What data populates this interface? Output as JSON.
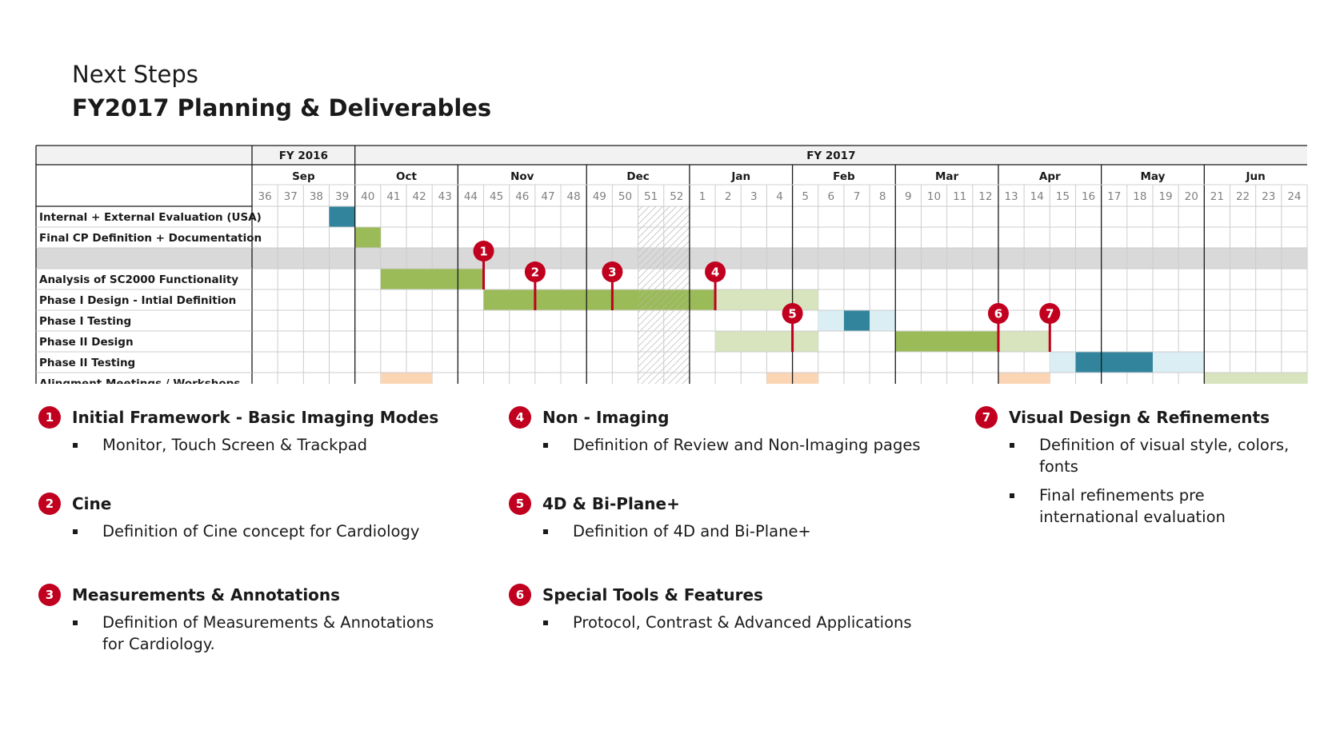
{
  "title": {
    "line1": "Next Steps",
    "line2": "FY2017 Planning & Deliverables"
  },
  "fiscal_years": [
    {
      "label": "FY 2016",
      "weeks": 4
    },
    {
      "label": "FY 2017",
      "weeks": 37
    }
  ],
  "months": [
    {
      "label": "Sep",
      "weeks": 4
    },
    {
      "label": "Oct",
      "weeks": 4
    },
    {
      "label": "Nov",
      "weeks": 5
    },
    {
      "label": "Dec",
      "weeks": 4
    },
    {
      "label": "Jan",
      "weeks": 4
    },
    {
      "label": "Feb",
      "weeks": 4
    },
    {
      "label": "Mar",
      "weeks": 4
    },
    {
      "label": "Apr",
      "weeks": 4
    },
    {
      "label": "May",
      "weeks": 4
    },
    {
      "label": "Jun",
      "weeks": 4
    }
  ],
  "weeks": [
    "36",
    "37",
    "38",
    "39",
    "40",
    "41",
    "42",
    "43",
    "44",
    "45",
    "46",
    "47",
    "48",
    "49",
    "50",
    "51",
    "52",
    "1",
    "2",
    "3",
    "4",
    "5",
    "6",
    "7",
    "8",
    "9",
    "10",
    "11",
    "12",
    "13",
    "14",
    "15",
    "16",
    "17",
    "18",
    "19",
    "20",
    "21",
    "22",
    "23",
    "24"
  ],
  "rows": [
    {
      "label": "Internal + External Evaluation (USA)"
    },
    {
      "label": "Final CP Definition + Documentation"
    },
    {
      "label": ""
    },
    {
      "label": "Analysis of SC2000 Functionality"
    },
    {
      "label": "Phase I Design - Intial Definition"
    },
    {
      "label": "Phase I Testing"
    },
    {
      "label": "Phase II Design"
    },
    {
      "label": "Phase II Testing"
    },
    {
      "label": "Alingment Meetings / Workshops"
    }
  ],
  "colors": {
    "green": "#9bbb59",
    "light_green": "#d7e4bd",
    "teal": "#31849b",
    "light_blue": "#daeef3",
    "peach": "#fcd5b4",
    "separator": "#d9d9d9",
    "marker": "#c0001e",
    "hatch": "#bfbfbf"
  },
  "bars": [
    {
      "row": 0,
      "start_week": 3,
      "span": 1,
      "color": "teal"
    },
    {
      "row": 1,
      "start_week": 4,
      "span": 1,
      "color": "green"
    },
    {
      "row": 3,
      "start_week": 5,
      "span": 4,
      "color": "green"
    },
    {
      "row": 4,
      "start_week": 9,
      "span": 9,
      "color": "green"
    },
    {
      "row": 4,
      "start_week": 18,
      "span": 4,
      "color": "light_green"
    },
    {
      "row": 5,
      "start_week": 22,
      "span": 1,
      "color": "light_blue"
    },
    {
      "row": 5,
      "start_week": 23,
      "span": 1,
      "color": "teal"
    },
    {
      "row": 5,
      "start_week": 24,
      "span": 1,
      "color": "light_blue"
    },
    {
      "row": 6,
      "start_week": 18,
      "span": 4,
      "color": "light_green"
    },
    {
      "row": 6,
      "start_week": 25,
      "span": 4,
      "color": "green"
    },
    {
      "row": 6,
      "start_week": 29,
      "span": 2,
      "color": "light_green"
    },
    {
      "row": 7,
      "start_week": 31,
      "span": 1,
      "color": "light_blue"
    },
    {
      "row": 7,
      "start_week": 32,
      "span": 3,
      "color": "teal"
    },
    {
      "row": 7,
      "start_week": 35,
      "span": 2,
      "color": "light_blue"
    },
    {
      "row": 8,
      "start_week": 5,
      "span": 2,
      "color": "peach"
    },
    {
      "row": 8,
      "start_week": 20,
      "span": 2,
      "color": "peach"
    },
    {
      "row": 8,
      "start_week": 29,
      "span": 2,
      "color": "peach"
    },
    {
      "row": 8,
      "start_week": 37,
      "span": 4,
      "color": "light_green"
    }
  ],
  "holiday": {
    "start_week": 15,
    "span": 2
  },
  "separator_row": 2,
  "milestones": [
    {
      "id": "1",
      "week_boundary": 9,
      "from_row": 2,
      "to_row": 3
    },
    {
      "id": "2",
      "week_boundary": 11,
      "from_row": 3,
      "to_row": 4
    },
    {
      "id": "3",
      "week_boundary": 14,
      "from_row": 3,
      "to_row": 4
    },
    {
      "id": "4",
      "week_boundary": 18,
      "from_row": 3,
      "to_row": 4
    },
    {
      "id": "5",
      "week_boundary": 21,
      "from_row": 5,
      "to_row": 6
    },
    {
      "id": "6",
      "week_boundary": 29,
      "from_row": 5,
      "to_row": 6
    },
    {
      "id": "7",
      "week_boundary": 31,
      "from_row": 5,
      "to_row": 6
    }
  ],
  "legend": [
    {
      "id": "1",
      "title": "Initial Framework - Basic Imaging Modes",
      "items": [
        "Monitor, Touch Screen & Trackpad"
      ]
    },
    {
      "id": "2",
      "title": "Cine",
      "items": [
        "Definition of Cine concept for Cardiology"
      ]
    },
    {
      "id": "3",
      "title": "Measurements & Annotations",
      "items": [
        "Definition of Measurements & Annotations for Cardiology."
      ]
    },
    {
      "id": "4",
      "title": "Non - Imaging",
      "items": [
        "Definition of Review and Non-Imaging pages"
      ]
    },
    {
      "id": "5",
      "title": "4D & Bi-Plane+",
      "items": [
        "Definition of 4D and Bi-Plane+"
      ]
    },
    {
      "id": "6",
      "title": "Special Tools & Features",
      "items": [
        "Protocol, Contrast & Advanced Applications"
      ]
    },
    {
      "id": "7",
      "title": "Visual Design & Refinements",
      "items": [
        "Definition of visual style, colors, fonts",
        "Final refinements pre international evaluation"
      ]
    }
  ]
}
